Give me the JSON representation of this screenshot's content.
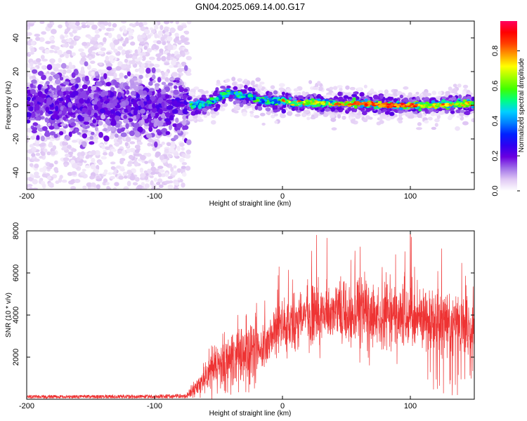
{
  "chart_data": [
    {
      "type": "heatmap",
      "title": "GN04.2025.069.14.00.G17",
      "xlabel": "Height of straight line (km)",
      "ylabel": "Frequency (Hz)",
      "xlim": [
        -200,
        150
      ],
      "ylim": [
        -50,
        50
      ],
      "xticks": [
        -200,
        -100,
        0,
        100
      ],
      "yticks": [
        -40,
        -20,
        0,
        20,
        40
      ],
      "grid": false,
      "colorbar": {
        "label": "Normalized spectral amplitude",
        "range": [
          0.0,
          0.97
        ],
        "ticks": [
          0.0,
          0.2,
          0.4,
          0.6,
          0.8
        ],
        "colors": [
          "#ffffff",
          "#e0c8f4",
          "#a070e8",
          "#6a00e0",
          "#3000f0",
          "#0020ff",
          "#0080ff",
          "#00d0ff",
          "#00ff80",
          "#40ff00",
          "#a0ff00",
          "#ffff00",
          "#ffa000",
          "#ff4000",
          "#ff0000",
          "#ff0060"
        ]
      },
      "regions": {
        "scatter_extent_km": [
          -200,
          -73
        ],
        "line_extent_km": [
          -73,
          150
        ],
        "ridge_track": [
          {
            "x": -73,
            "y": 0
          },
          {
            "x": -60,
            "y": 0.5
          },
          {
            "x": -50,
            "y": 4
          },
          {
            "x": -42,
            "y": 7.5
          },
          {
            "x": -35,
            "y": 6
          },
          {
            "x": -25,
            "y": 5
          },
          {
            "x": -15,
            "y": 3
          },
          {
            "x": -5,
            "y": 2
          },
          {
            "x": 0,
            "y": 3
          },
          {
            "x": 10,
            "y": 1
          },
          {
            "x": 20,
            "y": 1.5
          },
          {
            "x": 40,
            "y": 1
          },
          {
            "x": 60,
            "y": 1
          },
          {
            "x": 80,
            "y": 0
          },
          {
            "x": 100,
            "y": 0
          },
          {
            "x": 120,
            "y": 0
          },
          {
            "x": 140,
            "y": 1
          },
          {
            "x": 150,
            "y": 1
          }
        ]
      }
    },
    {
      "type": "line",
      "xlabel": "Height of straight line (km)",
      "ylabel": "SNR (10 * v/v)",
      "xlim": [
        -200,
        150
      ],
      "ylim": [
        0,
        8000
      ],
      "xticks": [
        -200,
        -100,
        0,
        100
      ],
      "yticks": [
        2000,
        4000,
        6000,
        8000
      ],
      "grid": false,
      "series": [
        {
          "color": "#ee3333",
          "envelope": [
            {
              "x": -200,
              "y": 120
            },
            {
              "x": -150,
              "y": 120
            },
            {
              "x": -100,
              "y": 130
            },
            {
              "x": -75,
              "y": 150
            },
            {
              "x": -65,
              "y": 700
            },
            {
              "x": -55,
              "y": 1400
            },
            {
              "x": -40,
              "y": 1800
            },
            {
              "x": -25,
              "y": 2200
            },
            {
              "x": -10,
              "y": 2800
            },
            {
              "x": 0,
              "y": 3300
            },
            {
              "x": 10,
              "y": 3600
            },
            {
              "x": 20,
              "y": 3900
            },
            {
              "x": 30,
              "y": 4100
            },
            {
              "x": 40,
              "y": 4150
            },
            {
              "x": 60,
              "y": 4050
            },
            {
              "x": 80,
              "y": 3950
            },
            {
              "x": 100,
              "y": 3900
            },
            {
              "x": 120,
              "y": 3700
            },
            {
              "x": 140,
              "y": 3500
            },
            {
              "x": 150,
              "y": 3300
            }
          ],
          "peak": {
            "x": 100,
            "y": 8000
          }
        }
      ]
    }
  ]
}
